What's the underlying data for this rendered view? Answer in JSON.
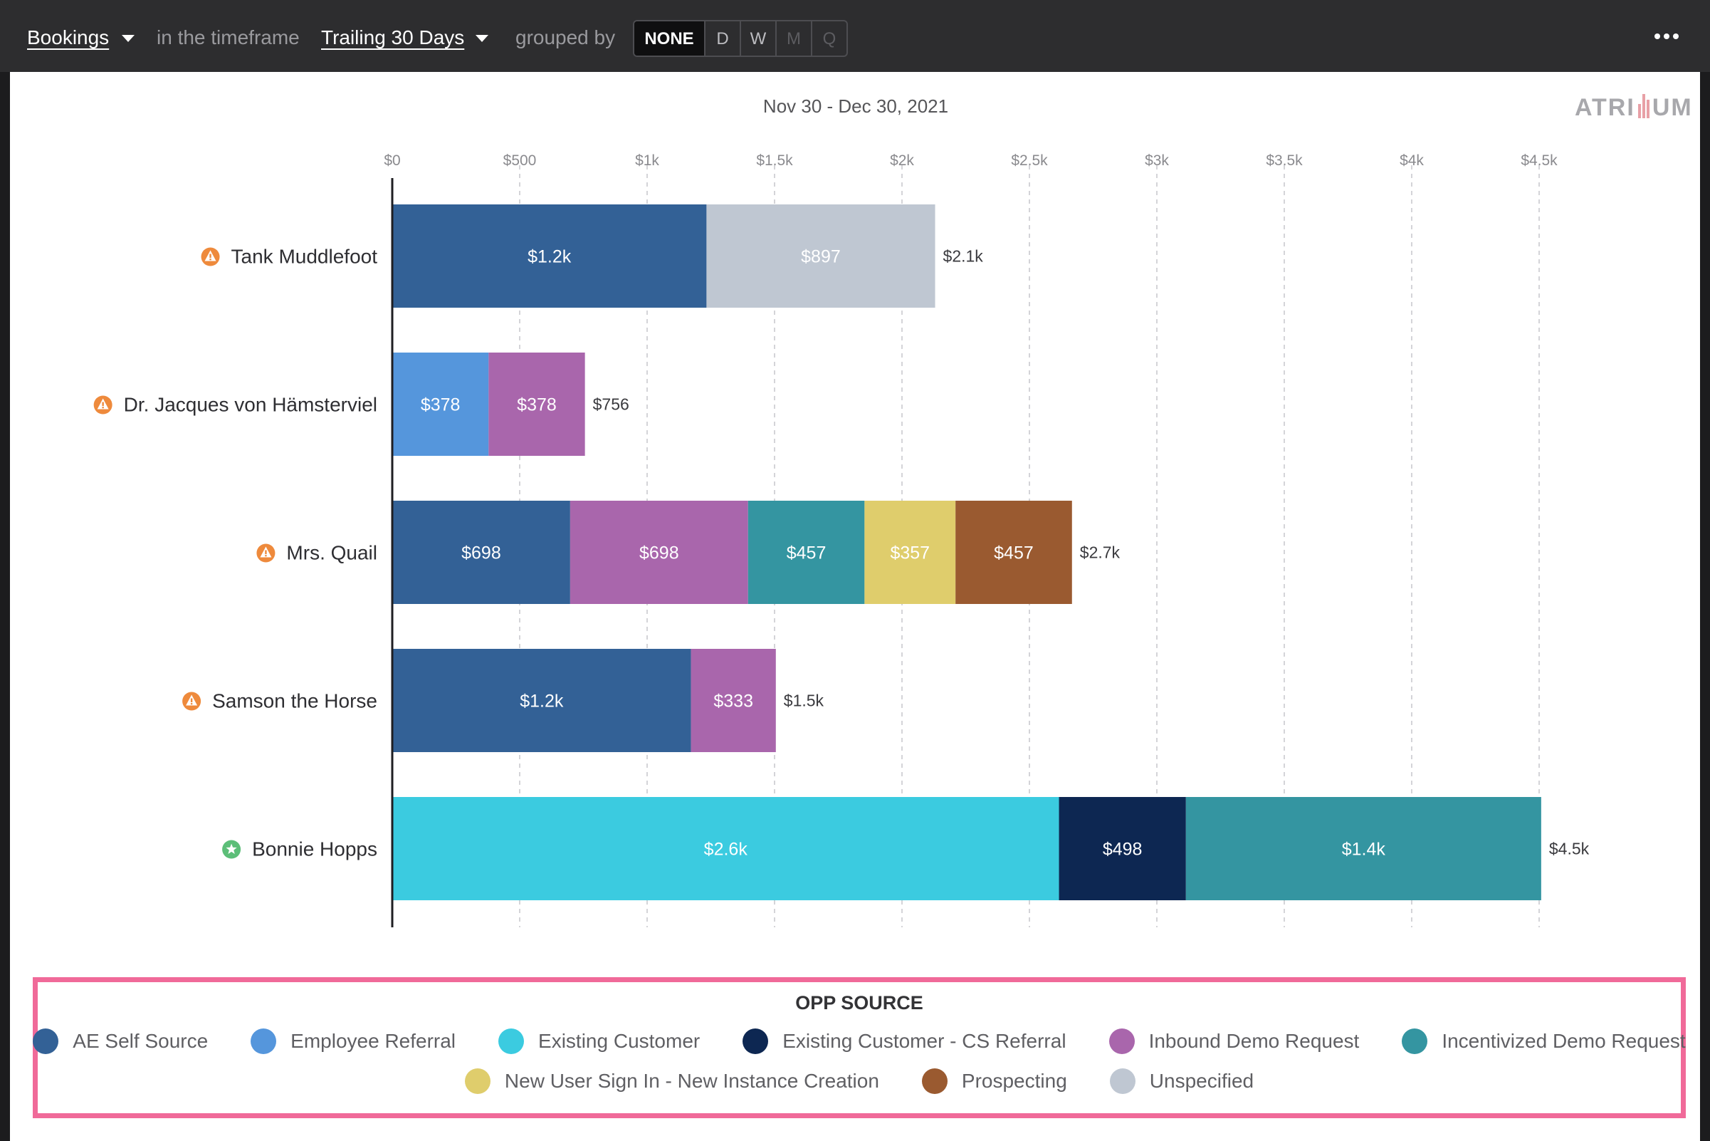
{
  "toolbar": {
    "metric": "Bookings",
    "in_timeframe": "in the timeframe",
    "timeframe": "Trailing 30 Days",
    "grouped_by": "grouped by",
    "grouping_options": [
      "NONE",
      "D",
      "W",
      "M",
      "Q"
    ],
    "active_grouping": "NONE"
  },
  "header": {
    "date_range": "Nov 30 - Dec 30, 2021",
    "logo": "ATRIUM"
  },
  "colors": {
    "AE Self Source": "#336196",
    "Employee Referral": "#5596dc",
    "Existing Customer": "#3bcbe0",
    "Existing Customer - CS Referral": "#0d2752",
    "Inbound Demo Request": "#a966ac",
    "Incentivized Demo Request": "#3495a1",
    "New User Sign In - New Instance Creation": "#dfcd6c",
    "Prospecting": "#9a5a30",
    "Unspecified": "#bfc7d2",
    "warning": "#ee8a3c",
    "star": "#5cbe78"
  },
  "chart_data": {
    "type": "bar",
    "orientation": "horizontal",
    "stacked": true,
    "title": "Nov 30 - Dec 30, 2021",
    "xlim": [
      0,
      4500
    ],
    "xticks": [
      0,
      500,
      1000,
      1500,
      2000,
      2500,
      3000,
      3500,
      4000,
      4500
    ],
    "xtick_labels": [
      "$0",
      "$500",
      "$1k",
      "$1.5k",
      "$2k",
      "$2.5k",
      "$3k",
      "$3.5k",
      "$4k",
      "$4.5k"
    ],
    "grid": true,
    "categories": [
      "Tank Muddlefoot",
      "Dr. Jacques von Hämsterviel",
      "Mrs. Quail",
      "Samson the Horse",
      "Bonnie Hopps"
    ],
    "category_status": [
      "warning",
      "warning",
      "warning",
      "warning",
      "star"
    ],
    "bars": [
      {
        "total": 2130,
        "total_label": "$2.1k",
        "segments": [
          {
            "series": "AE Self Source",
            "value": 1233,
            "label": "$1.2k"
          },
          {
            "series": "Unspecified",
            "value": 897,
            "label": "$897"
          }
        ]
      },
      {
        "total": 756,
        "total_label": "$756",
        "segments": [
          {
            "series": "Employee Referral",
            "value": 378,
            "label": "$378"
          },
          {
            "series": "Inbound Demo Request",
            "value": 378,
            "label": "$378"
          }
        ]
      },
      {
        "total": 2667,
        "total_label": "$2.7k",
        "segments": [
          {
            "series": "AE Self Source",
            "value": 698,
            "label": "$698"
          },
          {
            "series": "Inbound Demo Request",
            "value": 698,
            "label": "$698"
          },
          {
            "series": "Incentivized Demo Request",
            "value": 457,
            "label": "$457"
          },
          {
            "series": "New User Sign In - New Instance Creation",
            "value": 357,
            "label": "$357"
          },
          {
            "series": "Prospecting",
            "value": 457,
            "label": "$457"
          }
        ]
      },
      {
        "total": 1505,
        "total_label": "$1.5k",
        "segments": [
          {
            "series": "AE Self Source",
            "value": 1172,
            "label": "$1.2k"
          },
          {
            "series": "Inbound Demo Request",
            "value": 333,
            "label": "$333"
          }
        ]
      },
      {
        "total": 4508,
        "total_label": "$4.5k",
        "segments": [
          {
            "series": "Existing Customer",
            "value": 2616,
            "label": "$2.6k"
          },
          {
            "series": "Existing Customer - CS Referral",
            "value": 498,
            "label": "$498"
          },
          {
            "series": "Incentivized Demo Request",
            "value": 1394,
            "label": "$1.4k"
          }
        ]
      }
    ],
    "legend": {
      "title": "OPP SOURCE",
      "position": "bottom",
      "rows": [
        [
          "AE Self Source",
          "Employee Referral",
          "Existing Customer",
          "Existing Customer - CS Referral",
          "Inbound Demo Request",
          "Incentivized Demo Request"
        ],
        [
          "New User Sign In - New Instance Creation",
          "Prospecting",
          "Unspecified"
        ]
      ]
    }
  }
}
